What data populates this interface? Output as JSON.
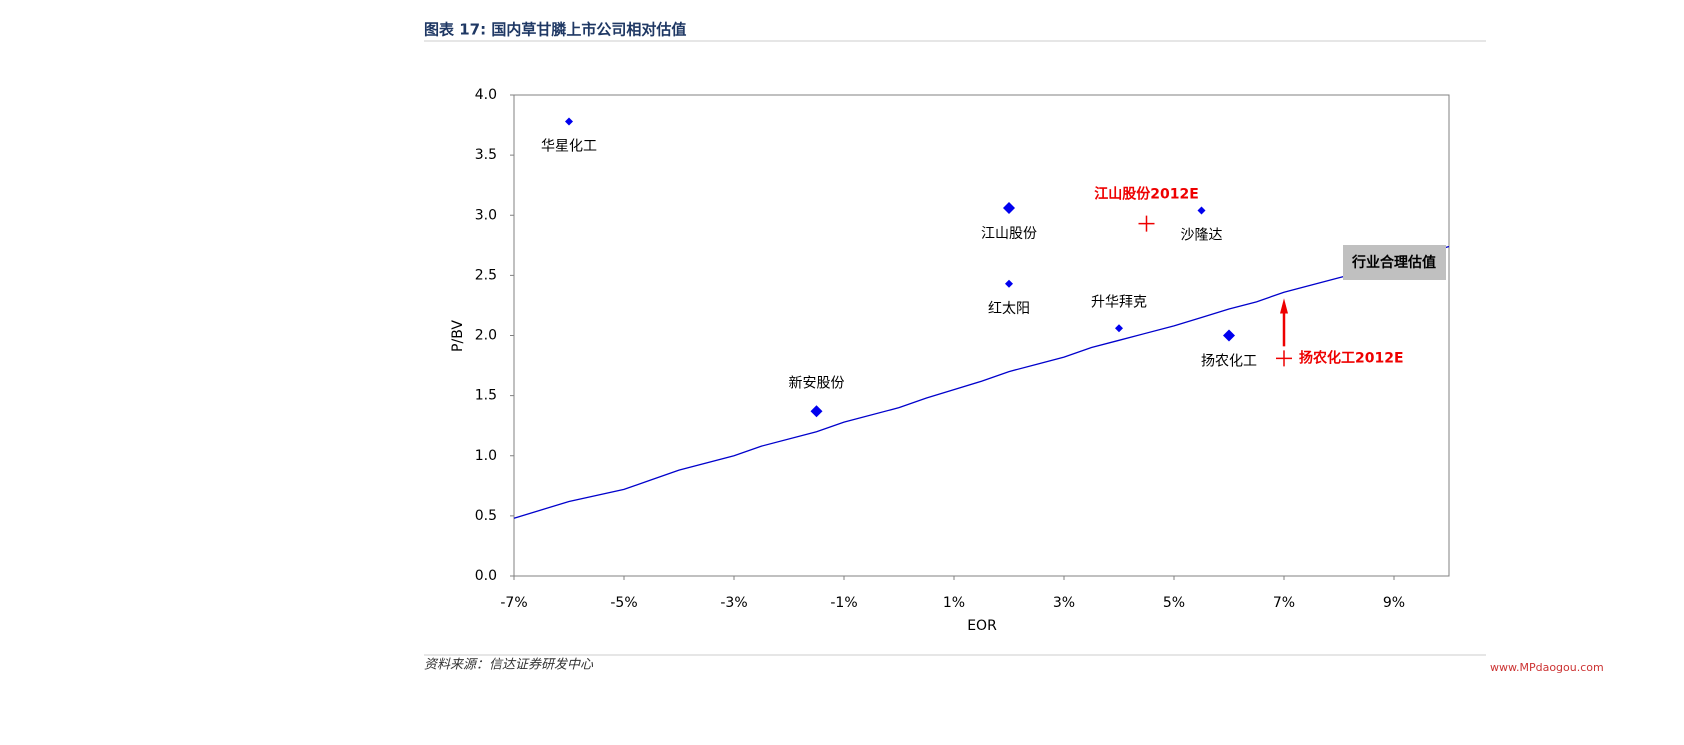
{
  "chart_data": {
    "type": "scatter",
    "title": "图表 17:  国内草甘膦上市公司相对估值",
    "source": "资料来源：信达证券研发中心",
    "watermark": "www.MPdaogou.com",
    "xlabel": "EOR",
    "ylabel": "P/BV",
    "xlim": [
      -7,
      10
    ],
    "ylim": [
      0,
      4
    ],
    "xticks": [
      {
        "value": -7,
        "label": "-7%"
      },
      {
        "value": -5,
        "label": "-5%"
      },
      {
        "value": -3,
        "label": "-3%"
      },
      {
        "value": -1,
        "label": "-1%"
      },
      {
        "value": 1,
        "label": "1%"
      },
      {
        "value": 3,
        "label": "3%"
      },
      {
        "value": 5,
        "label": "5%"
      },
      {
        "value": 7,
        "label": "7%"
      },
      {
        "value": 9,
        "label": "9%"
      }
    ],
    "yticks": [
      {
        "value": 0,
        "label": "0.0"
      },
      {
        "value": 0.5,
        "label": "0.5"
      },
      {
        "value": 1,
        "label": "1.0"
      },
      {
        "value": 1.5,
        "label": "1.5"
      },
      {
        "value": 2,
        "label": "2.0"
      },
      {
        "value": 2.5,
        "label": "2.5"
      },
      {
        "value": 3,
        "label": "3.0"
      },
      {
        "value": 3.5,
        "label": "3.5"
      },
      {
        "value": 4,
        "label": "4.0"
      }
    ],
    "points": {
      "color": "#0000ee",
      "labels": [
        "华星化工",
        "新安股份",
        "江山股份",
        "红太阳",
        "升华拜克",
        "沙隆达",
        "扬农化工"
      ],
      "x": [
        -6,
        -1.5,
        2,
        2,
        4,
        5.5,
        6
      ],
      "y": [
        3.78,
        1.37,
        3.06,
        2.43,
        2.06,
        3.04,
        2.0
      ]
    },
    "estimates": {
      "color": "#ee0000",
      "labels": [
        "江山股份2012E",
        "扬农化工2012E"
      ],
      "x": [
        4.5,
        7
      ],
      "y": [
        2.93,
        1.81
      ]
    },
    "fair_line": {
      "name": "行业合理估值",
      "color": "#0000cc",
      "x": [
        -7,
        -6.5,
        -6,
        -5,
        -4.5,
        -4,
        -3,
        -2.5,
        -1.5,
        -1,
        0,
        0.5,
        1,
        1.5,
        2,
        2.5,
        3,
        3.5,
        4,
        5,
        5.5,
        6,
        6.5,
        7,
        7.5,
        8,
        9,
        10
      ],
      "y": [
        0.48,
        0.55,
        0.62,
        0.72,
        0.8,
        0.88,
        1.0,
        1.08,
        1.2,
        1.28,
        1.4,
        1.48,
        1.55,
        1.62,
        1.7,
        1.76,
        1.82,
        1.9,
        1.96,
        2.08,
        2.15,
        2.22,
        2.28,
        2.36,
        2.42,
        2.48,
        2.6,
        2.74
      ]
    }
  }
}
